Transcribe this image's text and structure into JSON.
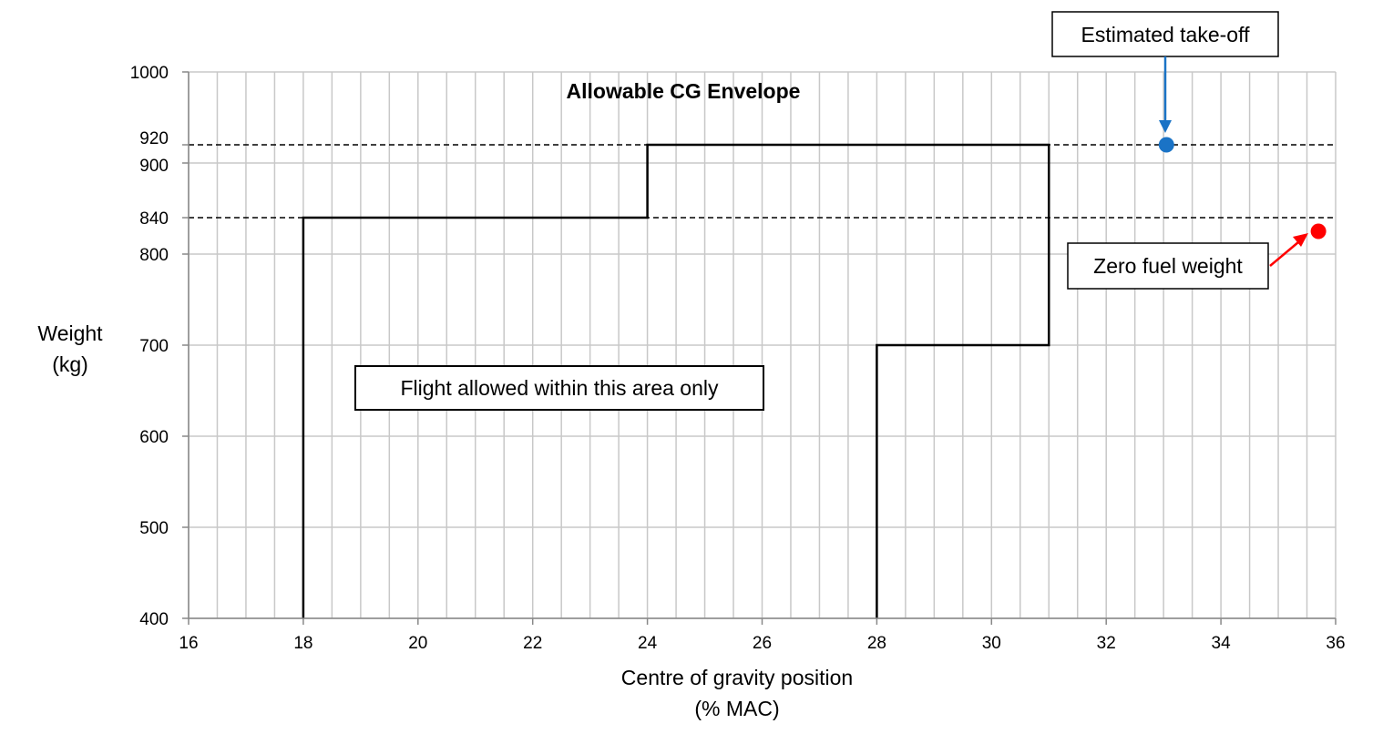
{
  "chart_data": {
    "type": "line",
    "title": "Allowable CG Envelope",
    "xlabel_lines": [
      "Centre of gravity position",
      "(% MAC)"
    ],
    "ylabel_lines": [
      "Weight",
      "(kg)"
    ],
    "xlim": [
      16,
      36
    ],
    "ylim": [
      400,
      1000
    ],
    "x_ticks": [
      16,
      18,
      20,
      22,
      24,
      26,
      28,
      30,
      32,
      34,
      36
    ],
    "y_ticks": [
      400,
      500,
      600,
      700,
      800,
      840,
      900,
      920,
      1000
    ],
    "x_minor_step": 0.5,
    "grid": true,
    "envelope": {
      "name": "Allowable CG Envelope",
      "points": [
        [
          18,
          400
        ],
        [
          18,
          840
        ],
        [
          24,
          840
        ],
        [
          24,
          920
        ],
        [
          31,
          920
        ],
        [
          31,
          700
        ],
        [
          28,
          700
        ],
        [
          28,
          400
        ]
      ],
      "color": "#000000"
    },
    "reference_lines": [
      {
        "y": 920,
        "style": "dashed"
      },
      {
        "y": 840,
        "style": "dashed"
      }
    ],
    "points": [
      {
        "label": "Estimated take-off",
        "x": 33.05,
        "y": 920,
        "color": "#1a73c6"
      },
      {
        "label": "Zero fuel weight",
        "x": 35.7,
        "y": 825,
        "color": "#ff0000"
      }
    ],
    "annotations": [
      {
        "text": "Flight allowed within this area only"
      },
      {
        "text": "Estimated take-off"
      },
      {
        "text": "Zero fuel weight"
      }
    ]
  }
}
